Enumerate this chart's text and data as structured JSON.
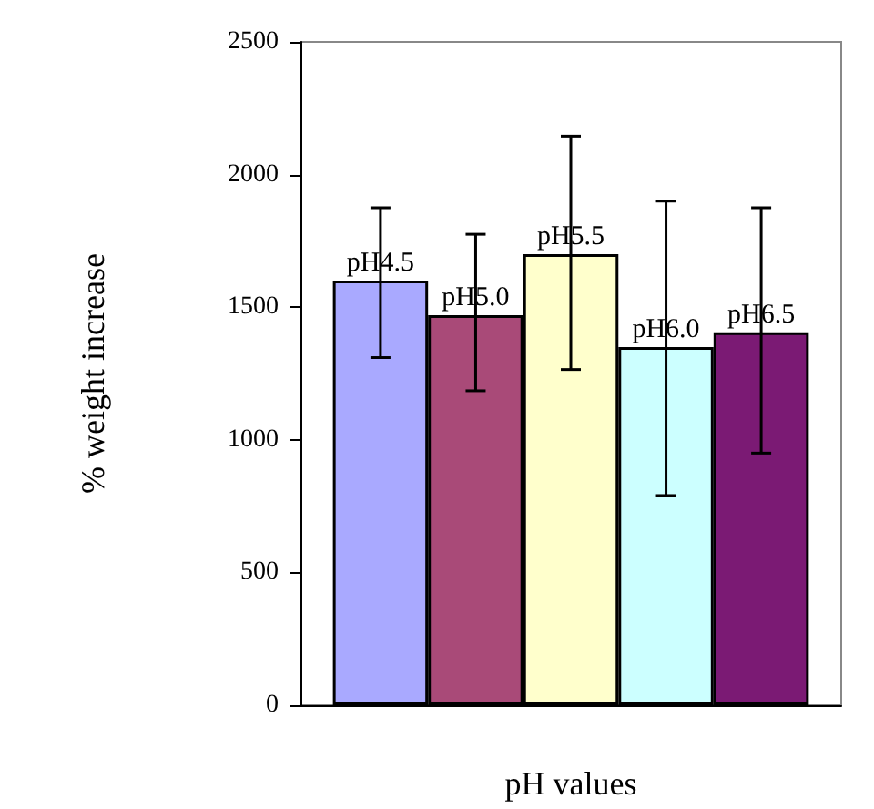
{
  "chart_data": {
    "type": "bar",
    "xlabel": "pH values",
    "ylabel": "% weight increase",
    "categories": [
      null
    ],
    "ylim": [
      0,
      2500
    ],
    "yticks": [
      0,
      500,
      1000,
      1500,
      2000,
      2500
    ],
    "grid": false,
    "series": [
      {
        "name": "pH4.5",
        "color": "#a9a9ff",
        "values": [
          1600
        ],
        "errors": [
          [
            1310,
            1875
          ]
        ]
      },
      {
        "name": "pH5.0",
        "color": "#a94a78",
        "values": [
          1470
        ],
        "errors": [
          [
            1185,
            1775
          ]
        ]
      },
      {
        "name": "pH5.5",
        "color": "#ffffcc",
        "values": [
          1700
        ],
        "errors": [
          [
            1265,
            2145
          ]
        ]
      },
      {
        "name": "pH6.0",
        "color": "#ccffff",
        "values": [
          1350
        ],
        "errors": [
          [
            790,
            1900
          ]
        ]
      },
      {
        "name": "pH6.5",
        "color": "#7b1a74",
        "values": [
          1405
        ],
        "errors": [
          [
            950,
            1875
          ]
        ]
      }
    ]
  }
}
